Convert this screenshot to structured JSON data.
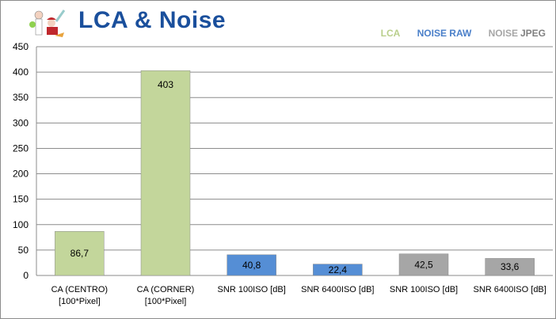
{
  "header": {
    "title": "LCA & Noise"
  },
  "legend": [
    {
      "label": "LCA",
      "color": "#b9cf8c"
    },
    {
      "label": "NOISE RAW",
      "color": "#4a7fc9"
    },
    {
      "label": "NOISE",
      "color": "#a6a6a6"
    },
    {
      "label": "JPEG",
      "color": "#7f7f7f"
    }
  ],
  "chart_data": {
    "type": "bar",
    "title": "LCA & Noise",
    "categories": [
      [
        "CA (CENTRO)",
        "[100*Pixel]"
      ],
      [
        "CA (CORNER)",
        "[100*Pixel]"
      ],
      [
        "SNR 100ISO [dB]"
      ],
      [
        "SNR 6400ISO [dB]"
      ],
      [
        "SNR 100ISO [dB]"
      ],
      [
        "SNR 6400ISO [dB]"
      ]
    ],
    "values": [
      86.7,
      403,
      40.8,
      22.4,
      42.5,
      33.6
    ],
    "value_labels": [
      "86,7",
      "403",
      "40,8",
      "22,4",
      "42,5",
      "33,6"
    ],
    "colors": [
      "#c3d69b",
      "#c3d69b",
      "#558ed5",
      "#558ed5",
      "#a6a6a6",
      "#a6a6a6"
    ],
    "ylim": [
      0,
      450
    ],
    "yticks": [
      0,
      50,
      100,
      150,
      200,
      250,
      300,
      350,
      400,
      450
    ],
    "grid": true,
    "legend_position": "top-right"
  }
}
